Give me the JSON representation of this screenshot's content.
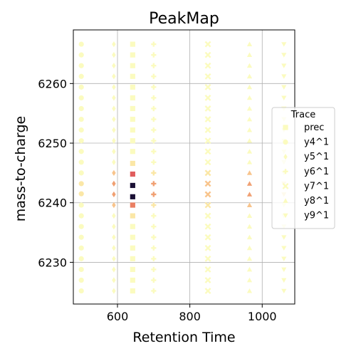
{
  "chart_data": {
    "type": "scatter",
    "title": "PeakMap",
    "xlabel": "Retention Time",
    "ylabel": "mass-to-charge",
    "xlim": [
      478,
      1090
    ],
    "ylim": [
      6223,
      6269
    ],
    "xticks": [
      600,
      800,
      1000
    ],
    "yticks": [
      6230,
      6240,
      6250,
      6260
    ],
    "grid": true,
    "legend": {
      "title": "Trace",
      "placement": "right"
    },
    "intensity_scale": [
      {
        "level": 0,
        "color": "#fbfbbf"
      },
      {
        "level": 1,
        "color": "#fbe7a6"
      },
      {
        "level": 2,
        "color": "#f8c48c"
      },
      {
        "level": 3,
        "color": "#f0a073"
      },
      {
        "level": 4,
        "color": "#ea7f63"
      },
      {
        "level": 5,
        "color": "#e05d5d"
      },
      {
        "level": 6,
        "color": "#1b1035"
      }
    ],
    "series": [
      {
        "name": "prec",
        "marker": "square",
        "x": 642,
        "y_start": 6225.2,
        "y_step": 1.8,
        "count": 24,
        "highlights": [
          {
            "y": 6239.6,
            "level": 4
          },
          {
            "y": 6241.0,
            "level": 6
          },
          {
            "y": 6242.9,
            "level": 6
          },
          {
            "y": 6244.8,
            "level": 5
          },
          {
            "y": 6237.8,
            "level": 1
          },
          {
            "y": 6246.6,
            "level": 1
          }
        ]
      },
      {
        "name": "y4^1",
        "marker": "circle",
        "x": 500,
        "y_start": 6225.2,
        "y_step": 1.8,
        "count": 24,
        "highlights": [
          {
            "y": 6241.5,
            "level": 1
          },
          {
            "y": 6243.2,
            "level": 1
          }
        ]
      },
      {
        "name": "y5^1",
        "marker": "thin_diamond",
        "x": 590,
        "y_start": 6225.2,
        "y_step": 1.8,
        "count": 24,
        "highlights": [
          {
            "y": 6239.6,
            "level": 2
          },
          {
            "y": 6241.4,
            "level": 3
          },
          {
            "y": 6243.2,
            "level": 3
          },
          {
            "y": 6245.0,
            "level": 2
          }
        ]
      },
      {
        "name": "y6^1",
        "marker": "plus",
        "x": 700,
        "y_start": 6225.2,
        "y_step": 1.8,
        "count": 24,
        "highlights": [
          {
            "y": 6241.4,
            "level": 3
          },
          {
            "y": 6243.2,
            "level": 3
          },
          {
            "y": 6239.6,
            "level": 1
          },
          {
            "y": 6245.0,
            "level": 1
          }
        ]
      },
      {
        "name": "y7^1",
        "marker": "x",
        "x": 850,
        "y_start": 6225.2,
        "y_step": 1.8,
        "count": 24,
        "highlights": [
          {
            "y": 6241.4,
            "level": 2
          },
          {
            "y": 6243.2,
            "level": 2
          },
          {
            "y": 6239.6,
            "level": 1
          },
          {
            "y": 6245.0,
            "level": 1
          }
        ]
      },
      {
        "name": "y8^1",
        "marker": "triangle_up",
        "x": 965,
        "y_start": 6225.2,
        "y_step": 1.8,
        "count": 24,
        "highlights": [
          {
            "y": 6241.4,
            "level": 3
          },
          {
            "y": 6243.2,
            "level": 3
          },
          {
            "y": 6239.6,
            "level": 2
          },
          {
            "y": 6245.0,
            "level": 2
          }
        ]
      },
      {
        "name": "y9^1",
        "marker": "triangle_down",
        "x": 1060,
        "y_start": 6225.2,
        "y_step": 1.8,
        "count": 24,
        "highlights": [
          {
            "y": 6241.4,
            "level": 1
          },
          {
            "y": 6243.2,
            "level": 1
          }
        ]
      }
    ]
  }
}
